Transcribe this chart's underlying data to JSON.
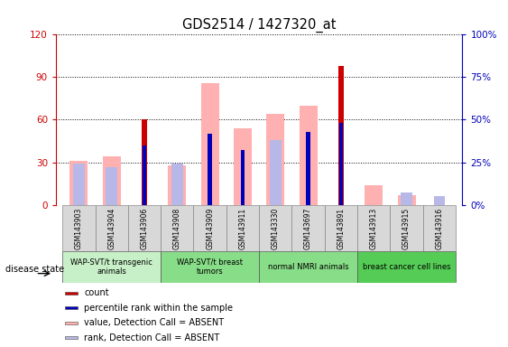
{
  "title": "GDS2514 / 1427320_at",
  "samples": [
    "GSM143903",
    "GSM143904",
    "GSM143906",
    "GSM143908",
    "GSM143909",
    "GSM143911",
    "GSM143330",
    "GSM143697",
    "GSM143891",
    "GSM143913",
    "GSM143915",
    "GSM143916"
  ],
  "groups": [
    {
      "label": "WAP-SVT/t transgenic\nanimals",
      "indices": [
        0,
        1,
        2
      ],
      "color": "#c8f0c8"
    },
    {
      "label": "WAP-SVT/t breast\ntumors",
      "indices": [
        3,
        4,
        5
      ],
      "color": "#90e090"
    },
    {
      "label": "normal NMRI animals",
      "indices": [
        6,
        7,
        8
      ],
      "color": "#90e090"
    },
    {
      "label": "breast cancer cell lines",
      "indices": [
        9,
        10,
        11
      ],
      "color": "#70d870"
    }
  ],
  "count_red": [
    0,
    0,
    60,
    0,
    0,
    0,
    0,
    0,
    98,
    0,
    0,
    0
  ],
  "percentile_blue": [
    0,
    0,
    35,
    0,
    42,
    32,
    0,
    43,
    48,
    0,
    0,
    0
  ],
  "value_absent_pink": [
    31,
    34,
    0,
    28,
    86,
    54,
    64,
    70,
    0,
    14,
    7,
    0
  ],
  "rank_absent_lightblue": [
    24,
    22,
    0,
    24,
    0,
    0,
    38,
    0,
    0,
    0,
    7,
    5
  ],
  "ylim_left": [
    0,
    120
  ],
  "ylim_right": [
    0,
    100
  ],
  "yticks_left": [
    0,
    30,
    60,
    90,
    120
  ],
  "ytick_labels_left": [
    "0",
    "30",
    "60",
    "90",
    "120"
  ],
  "yticks_right": [
    0,
    25,
    50,
    75,
    100
  ],
  "ytick_labels_right": [
    "0%",
    "25%",
    "50%",
    "75%",
    "100%"
  ],
  "left_axis_color": "#cc0000",
  "right_axis_color": "#0000bb",
  "color_count": "#cc0000",
  "color_percentile": "#0000bb",
  "color_value_absent": "#ffb0b0",
  "color_rank_absent": "#b8b8e8",
  "legend_items": [
    {
      "color": "#cc0000",
      "label": "count"
    },
    {
      "color": "#0000bb",
      "label": "percentile rank within the sample"
    },
    {
      "color": "#ffb0b0",
      "label": "value, Detection Call = ABSENT"
    },
    {
      "color": "#b8b8e8",
      "label": "rank, Detection Call = ABSENT"
    }
  ]
}
